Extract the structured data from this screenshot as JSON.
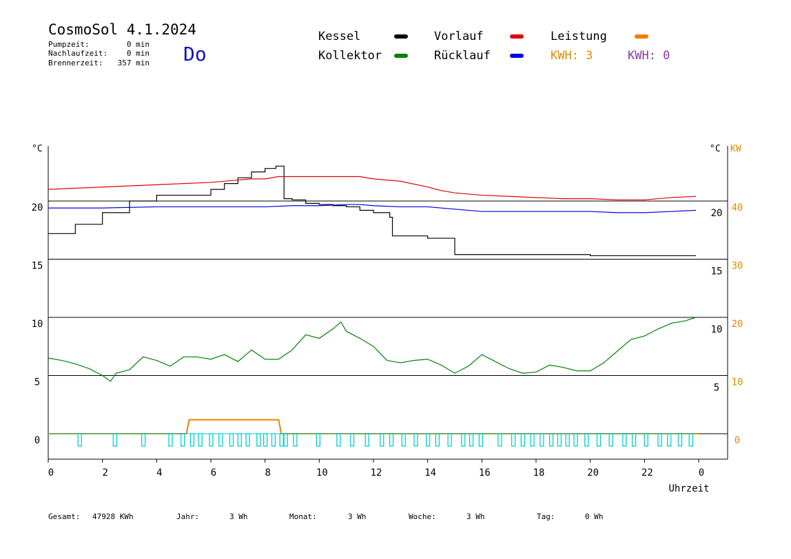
{
  "header": {
    "title": "CosmoSol 4.1.2024",
    "weekday": "Do",
    "stats": [
      {
        "label": "Pumpzeit:",
        "value": "0 min"
      },
      {
        "label": "Nachlaufzeit:",
        "value": "0 min"
      },
      {
        "label": "Brennerzeit:",
        "value": "357 min"
      }
    ]
  },
  "legend": [
    {
      "label": "Kessel",
      "color": "#000000"
    },
    {
      "label": "Vorlauf",
      "color": "#e00000"
    },
    {
      "label": "Leistung",
      "color": "#f08000"
    },
    {
      "label": "Kollektor",
      "color": "#008000"
    },
    {
      "label": "Rücklauf",
      "color": "#0000e0"
    }
  ],
  "kwh": [
    {
      "text": "KWH: 3",
      "color": "#e08a00"
    },
    {
      "text": "KWH: 0",
      "color": "#8a3aa0"
    }
  ],
  "footer": [
    {
      "label": "Gesamt:",
      "value": "47928 KWh"
    },
    {
      "label": "Jahr:",
      "value": "3 Wh"
    },
    {
      "label": "Monat:",
      "value": "3 Wh"
    },
    {
      "label": "Woche:",
      "value": "3 Wh"
    },
    {
      "label": "Tag:",
      "value": "0 Wh"
    }
  ],
  "colors": {
    "kessel": "#000000",
    "vorlauf": "#e00000",
    "ruecklauf": "#0000e0",
    "kollektor": "#008000",
    "leistung": "#f08000",
    "pump": "#00d0d0",
    "kw_axis": "#e08a00"
  },
  "chart_data": {
    "type": "line",
    "title": "",
    "xlabel": "Uhrzeit",
    "x_ticks": [
      "0",
      "2",
      "4",
      "6",
      "8",
      "10",
      "12",
      "14",
      "16",
      "18",
      "20",
      "22",
      "0"
    ],
    "left_unit": "°C",
    "left_ticks": [
      "0",
      "5",
      "10",
      "15",
      "20"
    ],
    "left_tick_values": [
      0,
      5,
      10,
      15,
      20
    ],
    "right_unit": "°C",
    "right_ticks": [
      "5",
      "10",
      "15",
      "20"
    ],
    "right_tick_values": [
      5,
      10,
      15,
      20
    ],
    "kw_unit": "KW",
    "kw_ticks": [
      "0",
      "10",
      "20",
      "30",
      "40"
    ],
    "kw_tick_values": [
      0,
      10,
      20,
      30,
      40
    ],
    "xlim": [
      0,
      24
    ],
    "ylim": [
      -2,
      25
    ],
    "grid": true,
    "series": [
      {
        "name": "Kessel",
        "x": [
          0,
          1,
          2,
          3,
          4,
          4.5,
          5,
          5.5,
          6,
          6.5,
          7,
          7.5,
          8,
          8.4,
          8.55,
          8.7,
          9,
          9.5,
          10,
          10.5,
          11,
          11.5,
          12,
          12.3,
          12.6,
          12.7,
          13,
          13.5,
          14,
          14.8,
          15,
          15.5,
          16,
          17,
          18,
          19,
          20,
          21,
          22,
          23,
          23.9
        ],
        "y": [
          17.2,
          18,
          19,
          20,
          20.5,
          20.5,
          20.5,
          20.5,
          21,
          21.5,
          22,
          22.5,
          22.8,
          23,
          23,
          20.2,
          20.1,
          19.8,
          19.7,
          19.6,
          19.5,
          19.2,
          19,
          19,
          18.6,
          17,
          17,
          17,
          16.8,
          16.8,
          15.4,
          15.4,
          15.4,
          15.4,
          15.4,
          15.4,
          15.3,
          15.3,
          15.3,
          15.3,
          15.3
        ]
      },
      {
        "name": "Vorlauf",
        "x": [
          0,
          1,
          2,
          3,
          4,
          5,
          6,
          7,
          7.5,
          8,
          8.5,
          9,
          10,
          11,
          11.5,
          12,
          13,
          14,
          14.5,
          15,
          16,
          17,
          18,
          19,
          20,
          21,
          22,
          23,
          23.9
        ],
        "y": [
          21,
          21.1,
          21.2,
          21.3,
          21.4,
          21.5,
          21.6,
          21.8,
          21.9,
          21.9,
          22.1,
          22.1,
          22.1,
          22.1,
          22.1,
          21.9,
          21.7,
          21.2,
          20.9,
          20.7,
          20.5,
          20.4,
          20.3,
          20.2,
          20.2,
          20.1,
          20.1,
          20.3,
          20.4
        ]
      },
      {
        "name": "Rücklauf",
        "x": [
          0,
          2,
          4,
          6,
          8,
          9,
          10,
          11,
          11.5,
          12,
          13,
          14,
          15,
          16,
          17,
          18,
          19,
          20,
          21,
          22,
          23,
          23.9
        ],
        "y": [
          19.4,
          19.4,
          19.5,
          19.5,
          19.5,
          19.6,
          19.6,
          19.7,
          19.7,
          19.6,
          19.5,
          19.5,
          19.3,
          19.1,
          19.1,
          19.1,
          19.1,
          19.1,
          19,
          19,
          19.1,
          19.2
        ]
      },
      {
        "name": "Kollektor",
        "x": [
          0,
          0.5,
          1,
          1.5,
          2,
          2.3,
          2.5,
          3,
          3.5,
          4,
          4.5,
          5,
          5.5,
          6,
          6.5,
          7,
          7.5,
          8,
          8.5,
          9,
          9.5,
          10,
          10.5,
          10.8,
          11,
          11.5,
          12,
          12.5,
          13,
          13.5,
          14,
          14.5,
          15,
          15.5,
          16,
          16.5,
          17,
          17.5,
          18,
          18.5,
          19,
          19.5,
          20,
          20.5,
          21,
          21.5,
          22,
          22.5,
          23,
          23.5,
          23.9
        ],
        "y": [
          6.5,
          6.3,
          6,
          5.6,
          5,
          4.5,
          5.2,
          5.5,
          6.6,
          6.3,
          5.8,
          6.6,
          6.6,
          6.4,
          6.8,
          6.2,
          7.2,
          6.4,
          6.4,
          7.2,
          8.5,
          8.2,
          9,
          9.6,
          8.8,
          8.2,
          7.5,
          6.3,
          6.1,
          6.3,
          6.4,
          5.9,
          5.2,
          5.8,
          6.8,
          6.2,
          5.6,
          5.2,
          5.3,
          5.9,
          5.7,
          5.4,
          5.4,
          6.1,
          7.1,
          8.1,
          8.4,
          9,
          9.5,
          9.7,
          10
        ]
      },
      {
        "name": "Leistung",
        "x": [
          0,
          5.1,
          5.2,
          8.5,
          8.6,
          24
        ],
        "y": [
          0,
          0,
          1.2,
          1.2,
          0,
          0
        ]
      }
    ],
    "pump_pulses_hours": [
      1.15,
      2.45,
      3.5,
      4.5,
      4.95,
      5.3,
      5.6,
      6.0,
      6.35,
      6.75,
      7.05,
      7.35,
      7.75,
      8.0,
      8.3,
      8.6,
      8.75,
      9.1,
      9.95,
      10.7,
      11.2,
      11.75,
      12.3,
      12.65,
      13.1,
      13.55,
      14.0,
      14.35,
      14.8,
      15.3,
      15.6,
      15.95,
      16.65,
      17.15,
      17.5,
      17.85,
      18.2,
      18.55,
      18.85,
      19.15,
      19.45,
      19.85,
      20.3,
      20.75,
      21.25,
      21.6,
      22.05,
      22.55,
      22.9,
      23.3,
      23.7
    ]
  }
}
